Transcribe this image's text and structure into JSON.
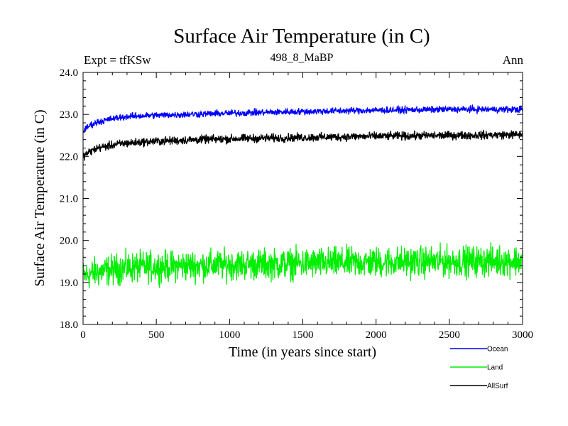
{
  "chart_data": {
    "type": "line",
    "title": "Surface Air Temperature (in C)",
    "subtitle": "498_8_MaBP",
    "left_annotation": "Expt = tfKSw",
    "right_annotation": "Ann",
    "xlabel": "Time (in years since start)",
    "ylabel": "Surface Air Temperature (in C)",
    "xlim": [
      0,
      3000
    ],
    "ylim": [
      18.0,
      24.0
    ],
    "xticks": [
      0,
      500,
      1000,
      1500,
      2000,
      2500,
      3000
    ],
    "yticks": [
      18.0,
      19.0,
      20.0,
      21.0,
      22.0,
      23.0,
      24.0
    ],
    "xtick_labels": [
      "0",
      "500",
      "1000",
      "1500",
      "2000",
      "2500",
      "3000"
    ],
    "ytick_labels": [
      "18.0",
      "19.0",
      "20.0",
      "21.0",
      "22.0",
      "23.0",
      "24.0"
    ],
    "grid": false,
    "legend_position": "bottom-right",
    "series": [
      {
        "name": "Ocean",
        "color": "#0000ff",
        "x": [
          0,
          50,
          100,
          200,
          300,
          400,
          500,
          700,
          1000,
          1500,
          2000,
          2500,
          3000
        ],
        "values": [
          22.6,
          22.75,
          22.82,
          22.9,
          22.95,
          22.97,
          22.98,
          23.0,
          23.03,
          23.07,
          23.1,
          23.12,
          23.12
        ],
        "noise": 0.04
      },
      {
        "name": "Land",
        "color": "#00ee00",
        "x": [
          0,
          100,
          300,
          500,
          1000,
          1500,
          2000,
          2500,
          3000
        ],
        "values": [
          19.15,
          19.25,
          19.35,
          19.38,
          19.42,
          19.45,
          19.48,
          19.5,
          19.52
        ],
        "noise": 0.18
      },
      {
        "name": "AllSurf",
        "color": "#000000",
        "x": [
          0,
          50,
          100,
          200,
          300,
          400,
          500,
          700,
          1000,
          1500,
          2000,
          2500,
          3000
        ],
        "values": [
          22.0,
          22.12,
          22.2,
          22.27,
          22.32,
          22.34,
          22.36,
          22.39,
          22.42,
          22.45,
          22.48,
          22.5,
          22.52
        ],
        "noise": 0.05
      }
    ]
  }
}
